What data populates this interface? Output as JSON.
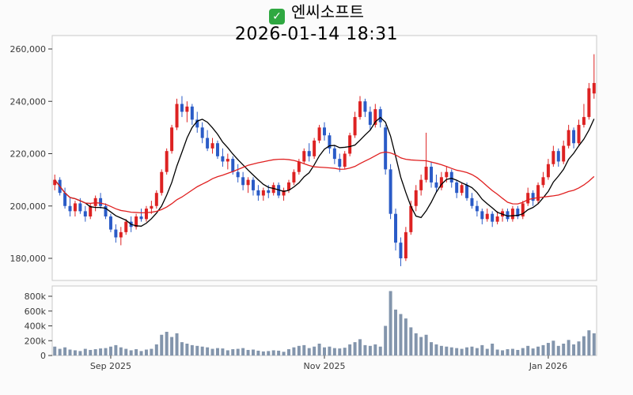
{
  "header": {
    "checkbox_icon": "✓",
    "title": "엔씨소프트",
    "datetime": "2026-01-14 18:31"
  },
  "colors": {
    "background": "#fbfbfb",
    "plot_bg": "#ffffff",
    "border": "#c9c9c9",
    "axis_text": "#3a3a3a",
    "up": "#dd2222",
    "down": "#2a5bc7",
    "ma_short": "#000000",
    "ma_long": "#e02020",
    "volume": "#8395ac",
    "check_green": "#2fa841"
  },
  "chart_data": {
    "type": "candlestick",
    "title": "엔씨소프트",
    "subtitle": "2026-01-14 18:31",
    "units": {
      "price": "KRW, candle values given in thousands",
      "volume": "shares, given in thousands"
    },
    "y_axis": {
      "min": 171000,
      "max": 265000,
      "ticks": [
        {
          "value": 260000,
          "label": "260,000"
        },
        {
          "value": 240000,
          "label": "240,000"
        },
        {
          "value": 220000,
          "label": "220,000"
        },
        {
          "value": 200000,
          "label": "200,000"
        },
        {
          "value": 180000,
          "label": "180,000"
        }
      ]
    },
    "volume_axis": {
      "max": 900000,
      "ticks": [
        {
          "value": 800000,
          "label": "800k"
        },
        {
          "value": 600000,
          "label": "600k"
        },
        {
          "value": 400000,
          "label": "400k"
        },
        {
          "value": 200000,
          "label": "200k"
        },
        {
          "value": 0,
          "label": "0"
        }
      ]
    },
    "x_ticks": [
      {
        "label": "Sep 2025",
        "index": 11
      },
      {
        "label": "Nov 2025",
        "index": 53
      },
      {
        "label": "Jan 2026",
        "index": 97
      }
    ],
    "overlays": [
      {
        "name": "ma-short",
        "window": 7,
        "color": "#000000"
      },
      {
        "name": "ma-long",
        "window": 25,
        "color": "#e02020"
      }
    ],
    "candles": [
      [
        208,
        212,
        206,
        210,
        120
      ],
      [
        210,
        211,
        204,
        205,
        90
      ],
      [
        205,
        207,
        199,
        200,
        110
      ],
      [
        200,
        203,
        196,
        198,
        80
      ],
      [
        198,
        202,
        196,
        201,
        70
      ],
      [
        201,
        203,
        197,
        198,
        60
      ],
      [
        198,
        200,
        194,
        196,
        90
      ],
      [
        196,
        201,
        195,
        200,
        75
      ],
      [
        200,
        204,
        198,
        203,
        85
      ],
      [
        203,
        205,
        199,
        200,
        95
      ],
      [
        200,
        201,
        195,
        196,
        100
      ],
      [
        196,
        197,
        190,
        191,
        120
      ],
      [
        191,
        193,
        186,
        188,
        140
      ],
      [
        188,
        192,
        185,
        190,
        110
      ],
      [
        190,
        195,
        189,
        194,
        90
      ],
      [
        194,
        196,
        190,
        192,
        70
      ],
      [
        192,
        197,
        191,
        196,
        85
      ],
      [
        196,
        199,
        194,
        195,
        60
      ],
      [
        195,
        200,
        194,
        199,
        80
      ],
      [
        199,
        202,
        197,
        200,
        90
      ],
      [
        200,
        206,
        199,
        205,
        150
      ],
      [
        205,
        214,
        204,
        213,
        280
      ],
      [
        213,
        222,
        212,
        221,
        320
      ],
      [
        221,
        231,
        220,
        230,
        250
      ],
      [
        230,
        241,
        229,
        239,
        300
      ],
      [
        239,
        242,
        234,
        236,
        180
      ],
      [
        236,
        240,
        232,
        238,
        160
      ],
      [
        238,
        239,
        231,
        233,
        140
      ],
      [
        233,
        236,
        228,
        230,
        130
      ],
      [
        230,
        232,
        224,
        226,
        120
      ],
      [
        226,
        229,
        221,
        222,
        110
      ],
      [
        222,
        226,
        220,
        224,
        90
      ],
      [
        224,
        225,
        218,
        219,
        100
      ],
      [
        219,
        222,
        215,
        217,
        95
      ],
      [
        217,
        220,
        214,
        218,
        70
      ],
      [
        218,
        219,
        212,
        213,
        85
      ],
      [
        213,
        216,
        209,
        211,
        90
      ],
      [
        211,
        213,
        206,
        208,
        100
      ],
      [
        208,
        211,
        205,
        210,
        75
      ],
      [
        210,
        211,
        204,
        206,
        80
      ],
      [
        206,
        208,
        202,
        204,
        65
      ],
      [
        204,
        207,
        202,
        206,
        55
      ],
      [
        206,
        208,
        203,
        205,
        60
      ],
      [
        205,
        209,
        204,
        208,
        70
      ],
      [
        208,
        209,
        203,
        204,
        65
      ],
      [
        204,
        207,
        202,
        206,
        50
      ],
      [
        206,
        210,
        205,
        209,
        85
      ],
      [
        209,
        214,
        208,
        213,
        110
      ],
      [
        213,
        218,
        212,
        217,
        130
      ],
      [
        217,
        222,
        216,
        221,
        140
      ],
      [
        221,
        224,
        217,
        219,
        100
      ],
      [
        219,
        226,
        218,
        225,
        120
      ],
      [
        225,
        231,
        224,
        230,
        160
      ],
      [
        230,
        232,
        225,
        227,
        110
      ],
      [
        227,
        228,
        220,
        222,
        120
      ],
      [
        222,
        223,
        216,
        218,
        100
      ],
      [
        218,
        220,
        213,
        215,
        95
      ],
      [
        215,
        221,
        214,
        220,
        105
      ],
      [
        220,
        228,
        219,
        227,
        150
      ],
      [
        227,
        236,
        226,
        234,
        180
      ],
      [
        234,
        242,
        233,
        240,
        220
      ],
      [
        240,
        241,
        234,
        236,
        140
      ],
      [
        236,
        238,
        229,
        231,
        130
      ],
      [
        231,
        239,
        230,
        237,
        150
      ],
      [
        237,
        238,
        230,
        232,
        120
      ],
      [
        230,
        231,
        212,
        214,
        400
      ],
      [
        214,
        216,
        195,
        197,
        870
      ],
      [
        197,
        199,
        183,
        186,
        620
      ],
      [
        186,
        188,
        177,
        180,
        560
      ],
      [
        180,
        192,
        179,
        190,
        500
      ],
      [
        190,
        202,
        189,
        200,
        380
      ],
      [
        200,
        208,
        198,
        206,
        300
      ],
      [
        206,
        212,
        204,
        210,
        250
      ],
      [
        210,
        228,
        209,
        215,
        280
      ],
      [
        215,
        217,
        207,
        209,
        180
      ],
      [
        209,
        212,
        205,
        207,
        150
      ],
      [
        207,
        213,
        206,
        211,
        130
      ],
      [
        211,
        215,
        209,
        213,
        120
      ],
      [
        213,
        214,
        207,
        209,
        110
      ],
      [
        209,
        210,
        203,
        205,
        100
      ],
      [
        205,
        209,
        204,
        208,
        90
      ],
      [
        208,
        209,
        202,
        203,
        110
      ],
      [
        203,
        205,
        199,
        200,
        120
      ],
      [
        200,
        202,
        196,
        198,
        100
      ],
      [
        198,
        199,
        193,
        195,
        140
      ],
      [
        195,
        199,
        194,
        197,
        90
      ],
      [
        197,
        198,
        192,
        194,
        160
      ],
      [
        194,
        198,
        193,
        196,
        80
      ],
      [
        196,
        199,
        194,
        198,
        70
      ],
      [
        198,
        199,
        194,
        195,
        85
      ],
      [
        195,
        200,
        194,
        199,
        90
      ],
      [
        199,
        200,
        195,
        196,
        75
      ],
      [
        196,
        202,
        195,
        201,
        100
      ],
      [
        201,
        207,
        200,
        205,
        130
      ],
      [
        205,
        206,
        200,
        202,
        95
      ],
      [
        202,
        209,
        201,
        208,
        120
      ],
      [
        208,
        213,
        207,
        211,
        140
      ],
      [
        211,
        218,
        210,
        216,
        170
      ],
      [
        216,
        223,
        215,
        221,
        200
      ],
      [
        221,
        222,
        215,
        217,
        130
      ],
      [
        217,
        225,
        216,
        223,
        160
      ],
      [
        223,
        231,
        222,
        229,
        210
      ],
      [
        229,
        230,
        222,
        224,
        150
      ],
      [
        224,
        233,
        223,
        231,
        190
      ],
      [
        231,
        239,
        230,
        234,
        260
      ],
      [
        234,
        247,
        233,
        245,
        340
      ],
      [
        243,
        258,
        241,
        247,
        300
      ]
    ]
  }
}
